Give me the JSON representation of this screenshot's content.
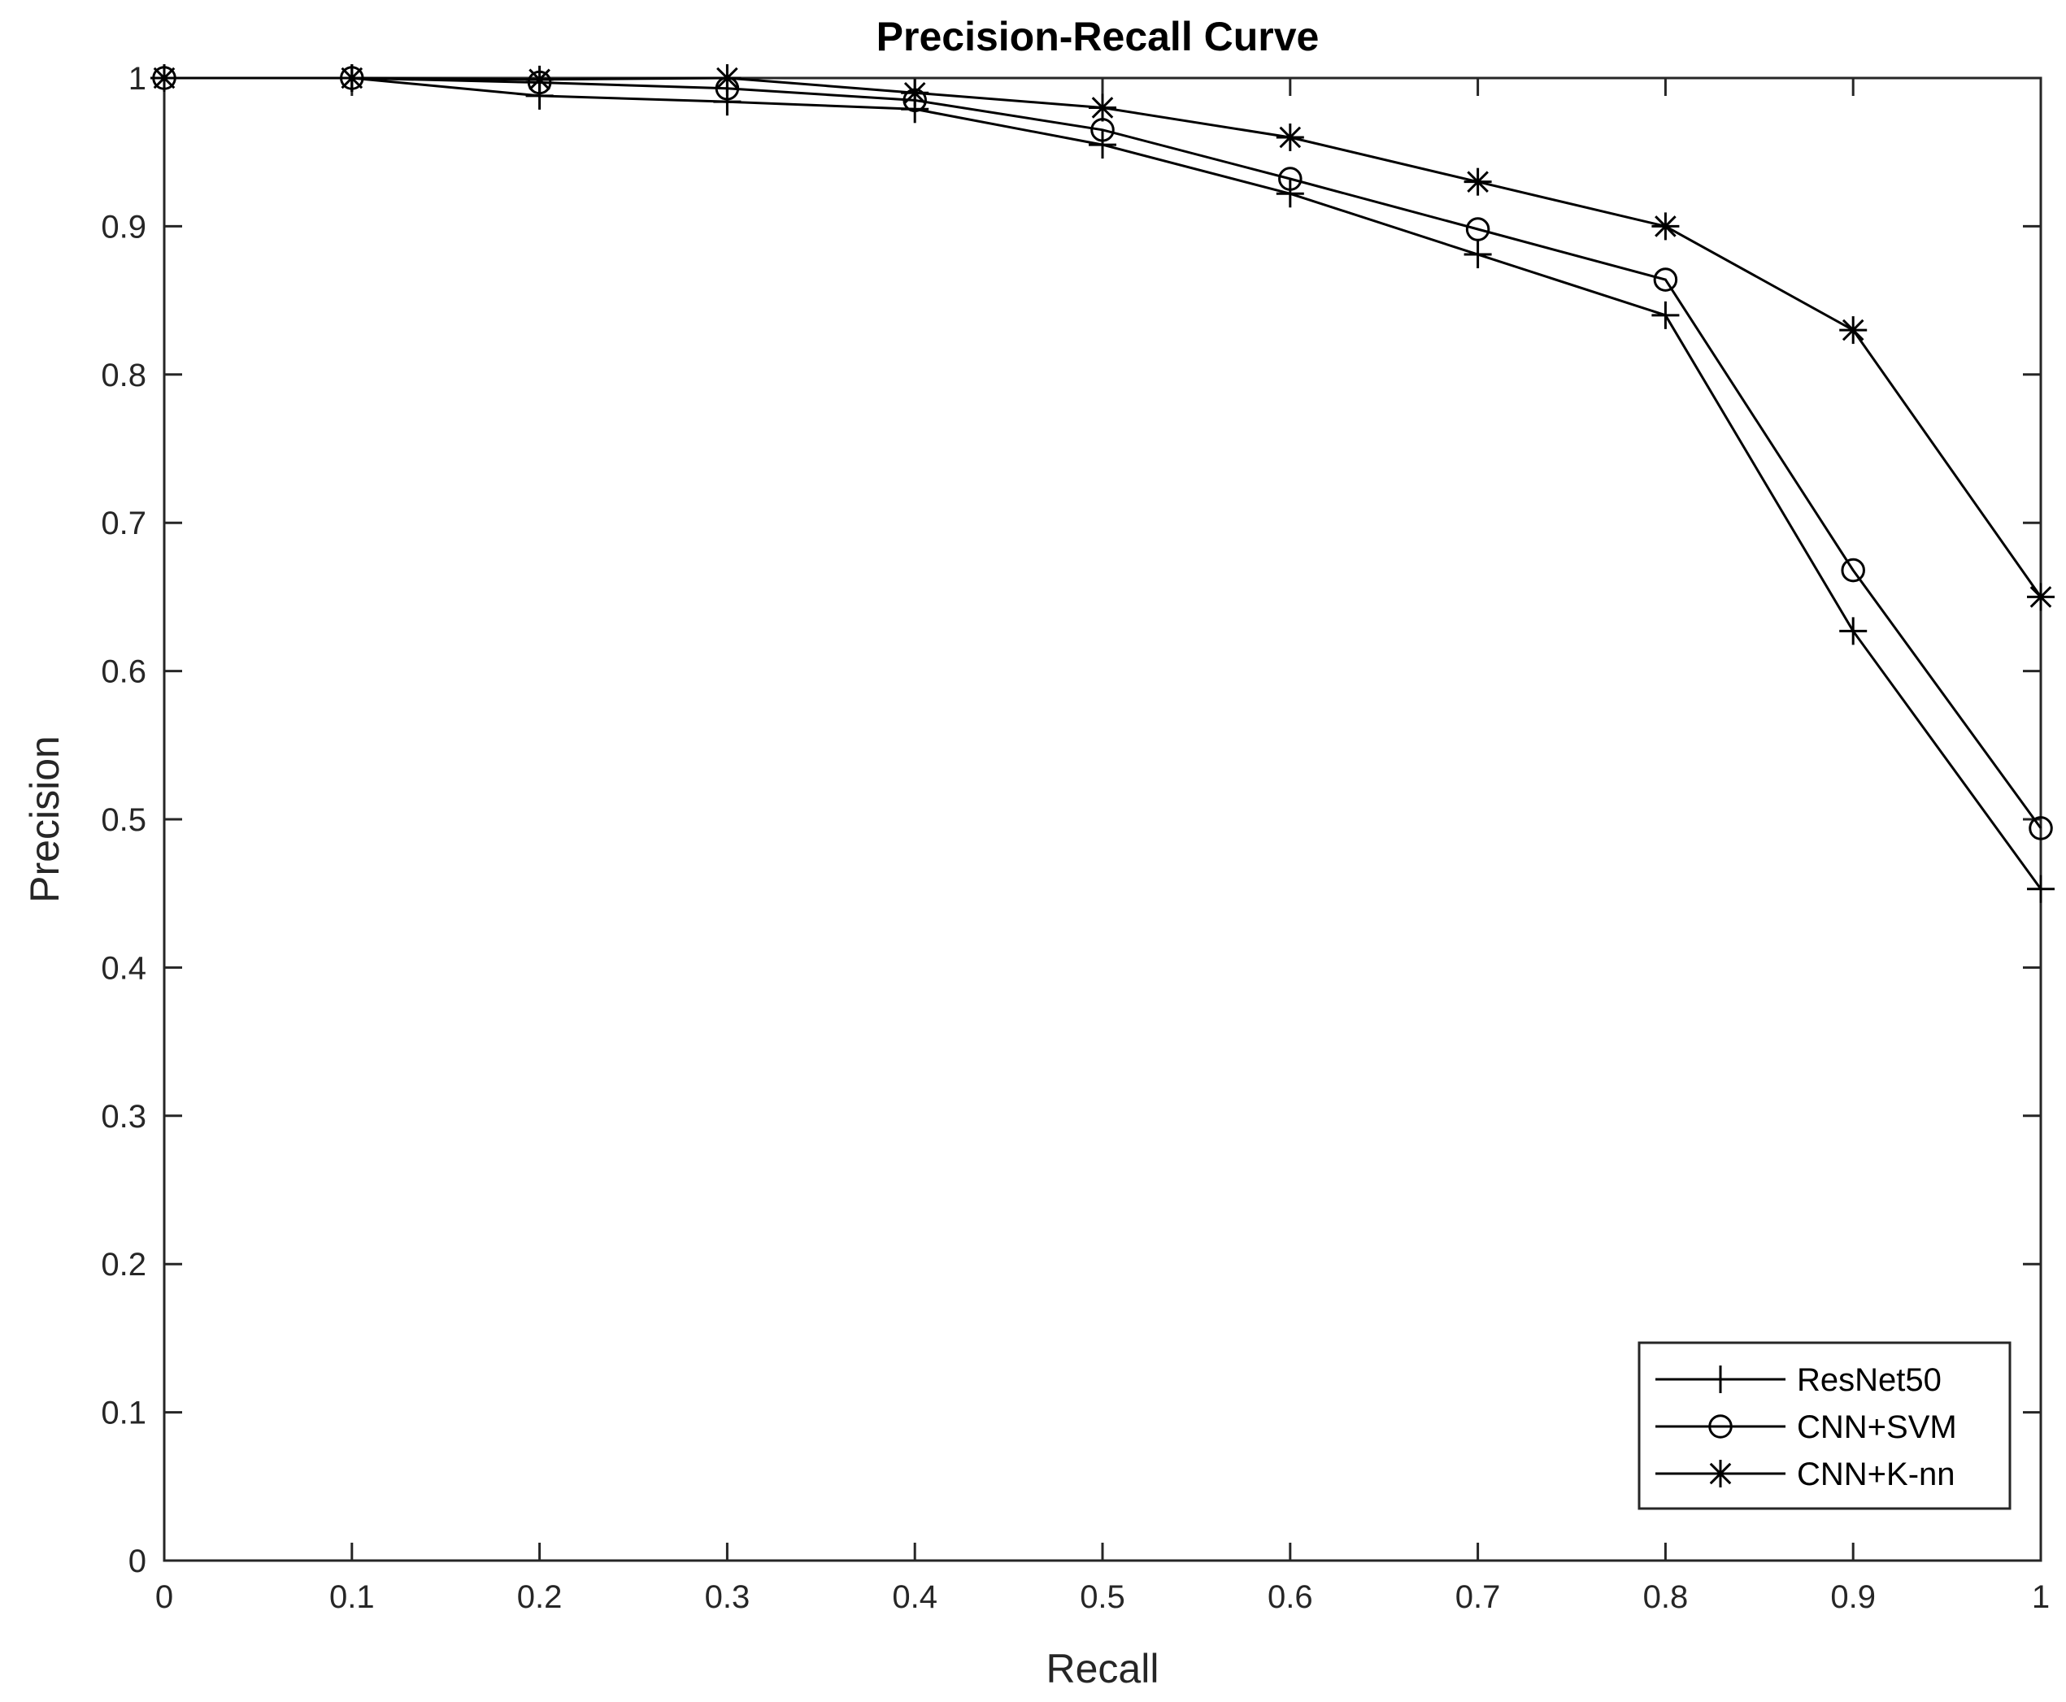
{
  "chart_data": {
    "type": "line",
    "title": "Precision-Recall Curve",
    "xlabel": "Recall",
    "ylabel": "Precision",
    "xlim": [
      0,
      1
    ],
    "ylim": [
      0,
      1
    ],
    "grid": false,
    "legend_position": "bottom-right",
    "line_color": "#000000",
    "x_ticks": [
      "0",
      "0.1",
      "0.2",
      "0.3",
      "0.4",
      "0.5",
      "0.6",
      "0.7",
      "0.8",
      "0.9",
      "1"
    ],
    "y_ticks": [
      "0",
      "0.1",
      "0.2",
      "0.3",
      "0.4",
      "0.5",
      "0.6",
      "0.7",
      "0.8",
      "0.9",
      "1"
    ],
    "x": [
      0,
      0.1,
      0.2,
      0.3,
      0.4,
      0.5,
      0.6,
      0.7,
      0.8,
      0.9,
      1.0
    ],
    "series": [
      {
        "name": "ResNet50",
        "marker": "plus",
        "values": [
          1.0,
          1.0,
          0.988,
          0.984,
          0.979,
          0.955,
          0.922,
          0.881,
          0.84,
          0.627,
          0.453
        ]
      },
      {
        "name": "CNN+SVM",
        "marker": "circle",
        "values": [
          1.0,
          1.0,
          0.997,
          0.993,
          0.985,
          0.965,
          0.932,
          0.898,
          0.864,
          0.668,
          0.494
        ]
      },
      {
        "name": "CNN+K-nn",
        "marker": "asterisk",
        "values": [
          1.0,
          1.0,
          0.999,
          1.0,
          0.99,
          0.98,
          0.96,
          0.93,
          0.9,
          0.83,
          0.65
        ]
      }
    ]
  }
}
